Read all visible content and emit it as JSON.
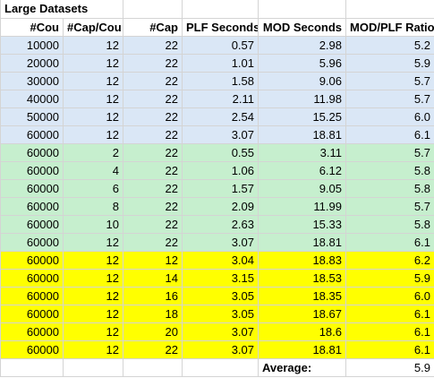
{
  "sheet": {
    "title": "Large Datasets",
    "columns": [
      "#Cou",
      "#Cap/Cou",
      "#Cap",
      "PLF Seconds",
      "MOD Seconds",
      "MOD/PLF Ratio"
    ],
    "row_groups": [
      {
        "color": "#dae7f6",
        "rows": [
          [
            "10000",
            "12",
            "22",
            "0.57",
            "2.98",
            "5.2"
          ],
          [
            "20000",
            "12",
            "22",
            "1.01",
            "5.96",
            "5.9"
          ],
          [
            "30000",
            "12",
            "22",
            "1.58",
            "9.06",
            "5.7"
          ],
          [
            "40000",
            "12",
            "22",
            "2.11",
            "11.98",
            "5.7"
          ],
          [
            "50000",
            "12",
            "22",
            "2.54",
            "15.25",
            "6.0"
          ],
          [
            "60000",
            "12",
            "22",
            "3.07",
            "18.81",
            "6.1"
          ]
        ]
      },
      {
        "color": "#c6efce",
        "rows": [
          [
            "60000",
            "2",
            "22",
            "0.55",
            "3.11",
            "5.7"
          ],
          [
            "60000",
            "4",
            "22",
            "1.06",
            "6.12",
            "5.8"
          ],
          [
            "60000",
            "6",
            "22",
            "1.57",
            "9.05",
            "5.8"
          ],
          [
            "60000",
            "8",
            "22",
            "2.09",
            "11.99",
            "5.7"
          ],
          [
            "60000",
            "10",
            "22",
            "2.63",
            "15.33",
            "5.8"
          ],
          [
            "60000",
            "12",
            "22",
            "3.07",
            "18.81",
            "6.1"
          ]
        ]
      },
      {
        "color": "#ffff00",
        "rows": [
          [
            "60000",
            "12",
            "12",
            "3.04",
            "18.83",
            "6.2"
          ],
          [
            "60000",
            "12",
            "14",
            "3.15",
            "18.53",
            "5.9"
          ],
          [
            "60000",
            "12",
            "16",
            "3.05",
            "18.35",
            "6.0"
          ],
          [
            "60000",
            "12",
            "18",
            "3.05",
            "18.67",
            "6.1"
          ],
          [
            "60000",
            "12",
            "20",
            "3.07",
            "18.6",
            "6.1"
          ],
          [
            "60000",
            "12",
            "22",
            "3.07",
            "18.81",
            "6.1"
          ]
        ]
      }
    ],
    "average_label": "Average:",
    "average_value": "5.9"
  }
}
